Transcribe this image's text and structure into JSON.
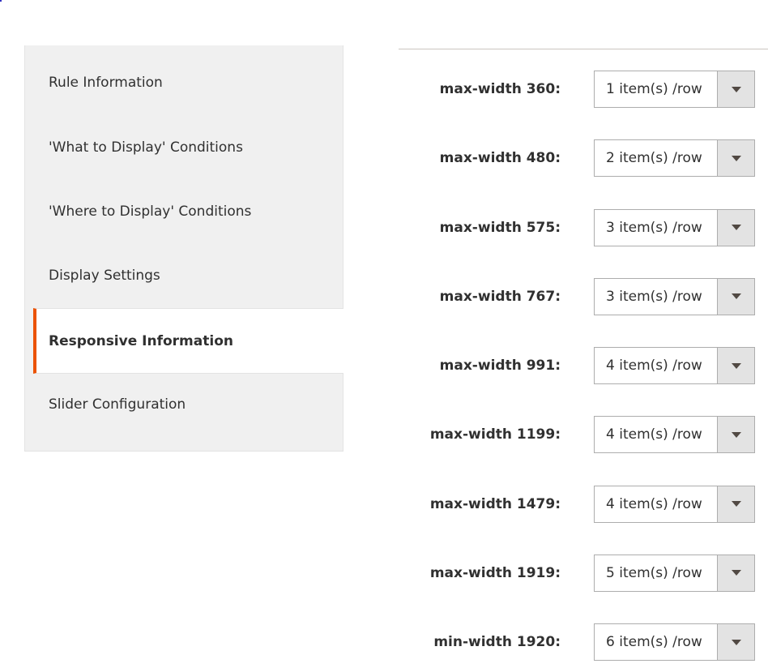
{
  "sidebar": {
    "items": [
      {
        "label": "Rule Information",
        "active": false
      },
      {
        "label": "'What to Display' Conditions",
        "active": false
      },
      {
        "label": "'Where to Display' Conditions",
        "active": false
      },
      {
        "label": "Display Settings",
        "active": false
      },
      {
        "label": "Responsive Information",
        "active": true
      },
      {
        "label": "Slider Configuration",
        "active": false
      }
    ]
  },
  "accent_color": "#eb5202",
  "responsive": {
    "rows": [
      {
        "label": "max-width 360:",
        "value": "1 item(s) /row"
      },
      {
        "label": "max-width 480:",
        "value": "2 item(s) /row"
      },
      {
        "label": "max-width 575:",
        "value": "3 item(s) /row"
      },
      {
        "label": "max-width 767:",
        "value": "3 item(s) /row"
      },
      {
        "label": "max-width 991:",
        "value": "4 item(s) /row"
      },
      {
        "label": "max-width 1199:",
        "value": "4 item(s) /row"
      },
      {
        "label": "max-width 1479:",
        "value": "4 item(s) /row"
      },
      {
        "label": "max-width 1919:",
        "value": "5 item(s) /row"
      },
      {
        "label": "min-width 1920:",
        "value": "6 item(s) /row"
      }
    ]
  }
}
